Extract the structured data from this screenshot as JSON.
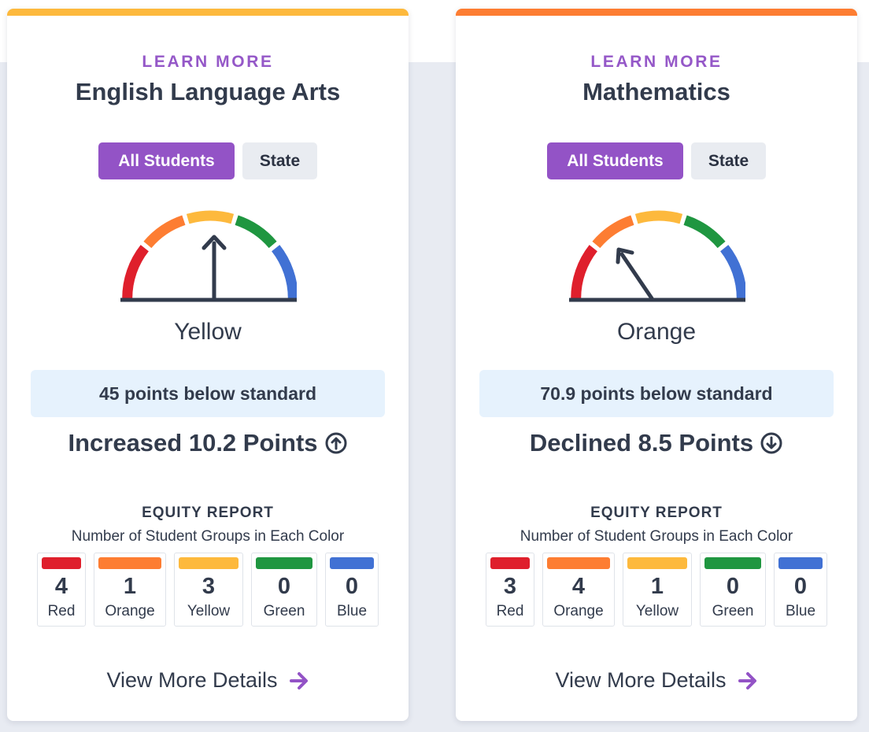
{
  "colors": {
    "red": "#df1f2c",
    "orange": "#fd7d32",
    "yellow": "#fdb93d",
    "green": "#1f9640",
    "blue": "#4171d4",
    "purple": "#9353c6",
    "status_box_bg": "#e6f2fd",
    "text": "#323b4c"
  },
  "cards": [
    {
      "accent_color": "#fdb93d",
      "learn_more": "LEARN MORE",
      "title": "English Language Arts",
      "toggle": {
        "active": "All Students",
        "inactive": "State"
      },
      "gauge_level": "yellow",
      "status": "Yellow",
      "status_detail": "45 points below standard",
      "change_text": "Increased 10.2 Points",
      "change_direction": "up",
      "change_icon": "arrow-up-circle-icon",
      "equity": {
        "title": "EQUITY REPORT",
        "subtitle": "Number of Student Groups in Each Color",
        "groups": [
          {
            "label": "Red",
            "count": "4",
            "color": "#df1f2c"
          },
          {
            "label": "Orange",
            "count": "1",
            "color": "#fd7d32"
          },
          {
            "label": "Yellow",
            "count": "3",
            "color": "#fdb93d"
          },
          {
            "label": "Green",
            "count": "0",
            "color": "#1f9640"
          },
          {
            "label": "Blue",
            "count": "0",
            "color": "#4171d4"
          }
        ]
      },
      "details_link": "View More Details",
      "details_icon": "arrow-right-icon"
    },
    {
      "accent_color": "#fd7d32",
      "learn_more": "LEARN MORE",
      "title": "Mathematics",
      "toggle": {
        "active": "All Students",
        "inactive": "State"
      },
      "gauge_level": "orange",
      "status": "Orange",
      "status_detail": "70.9 points below standard",
      "change_text": "Declined 8.5 Points",
      "change_direction": "down",
      "change_icon": "arrow-down-circle-icon",
      "equity": {
        "title": "EQUITY REPORT",
        "subtitle": "Number of Student Groups in Each Color",
        "groups": [
          {
            "label": "Red",
            "count": "3",
            "color": "#df1f2c"
          },
          {
            "label": "Orange",
            "count": "4",
            "color": "#fd7d32"
          },
          {
            "label": "Yellow",
            "count": "1",
            "color": "#fdb93d"
          },
          {
            "label": "Green",
            "count": "0",
            "color": "#1f9640"
          },
          {
            "label": "Blue",
            "count": "0",
            "color": "#4171d4"
          }
        ]
      },
      "details_link": "View More Details",
      "details_icon": "arrow-right-icon"
    }
  ]
}
